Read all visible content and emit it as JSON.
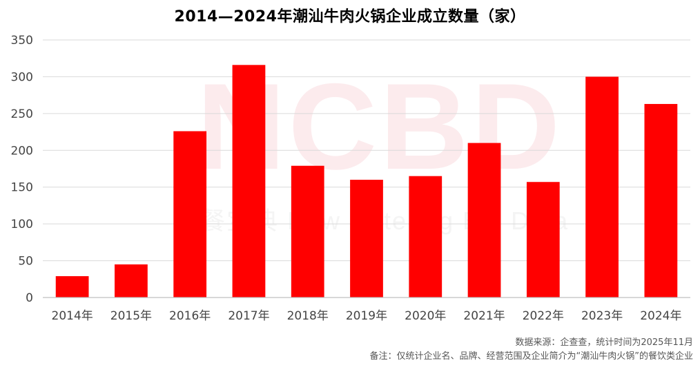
{
  "chart_data": {
    "type": "bar",
    "title": "2014—2024年潮汕牛肉火锅企业成立数量（家）",
    "categories": [
      "2014年",
      "2015年",
      "2016年",
      "2017年",
      "2018年",
      "2019年",
      "2020年",
      "2021年",
      "2022年",
      "2023年",
      "2024年"
    ],
    "values": [
      29,
      45,
      226,
      316,
      179,
      160,
      165,
      210,
      157,
      300,
      263
    ],
    "ylim": [
      0,
      350
    ],
    "yticks": [
      0,
      50,
      100,
      150,
      200,
      250,
      300,
      350
    ],
    "grid": true,
    "bar_color": "#ff0000",
    "xlabel": "",
    "ylabel": ""
  },
  "footer": {
    "source": "数据来源：企查查，统计时间为2025年11月",
    "note": "备注：仅统计企业名、品牌、经营范围及企业简介为“潮汕牛肉火锅”的餐饮类企业"
  },
  "watermark": {
    "main": "NCBD",
    "sub": "餐宝典  New Catering Big Data"
  }
}
